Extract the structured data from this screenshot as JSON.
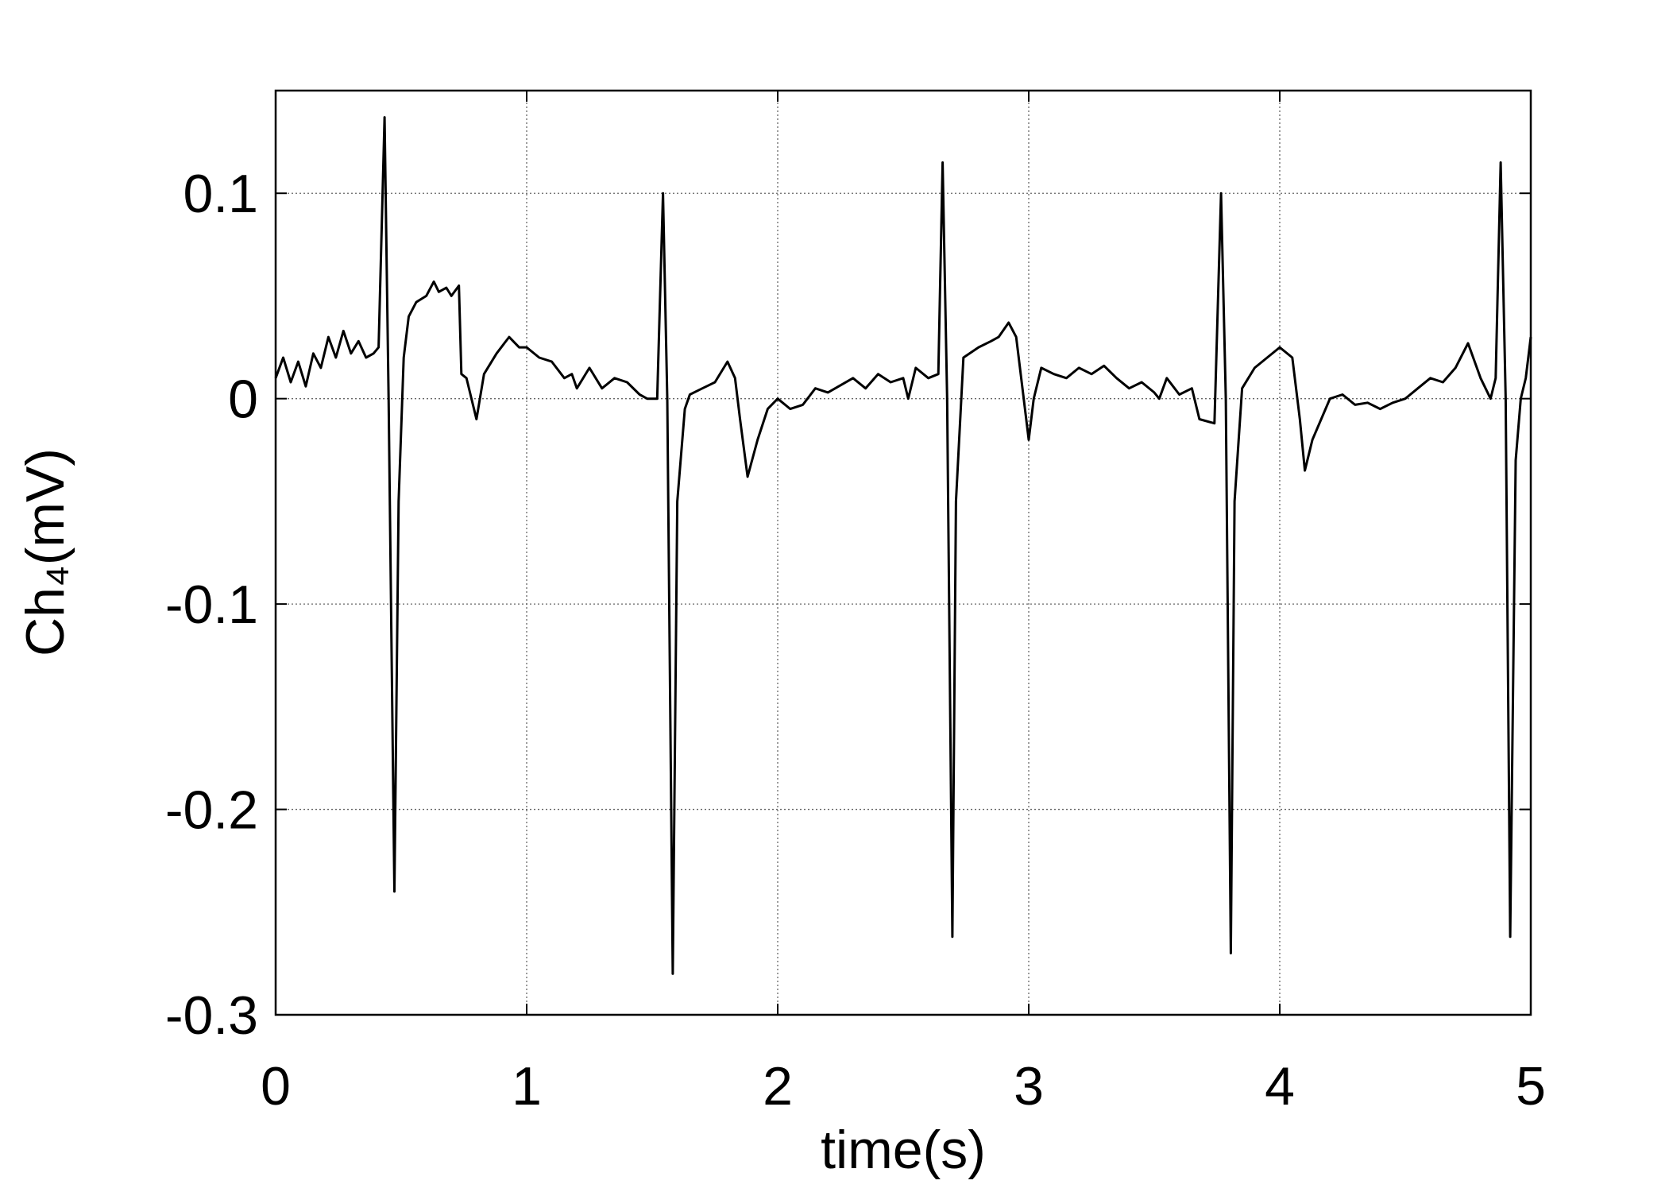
{
  "chart_data": {
    "type": "line",
    "xlabel": "time(s)",
    "ylabel": "Ch₄(mV)",
    "color": "#000000",
    "grid": true,
    "xlim": [
      0,
      5
    ],
    "ylim": [
      -0.3,
      0.15
    ],
    "xticks": [
      0,
      1,
      2,
      3,
      4,
      5
    ],
    "yticks": [
      -0.3,
      -0.2,
      -0.1,
      0,
      0.1
    ],
    "x": [
      0,
      0.03,
      0.06,
      0.09,
      0.12,
      0.15,
      0.18,
      0.21,
      0.24,
      0.27,
      0.3,
      0.33,
      0.36,
      0.39,
      0.41,
      0.434,
      0.45,
      0.473,
      0.49,
      0.51,
      0.53,
      0.56,
      0.6,
      0.63,
      0.65,
      0.68,
      0.7,
      0.73,
      0.74,
      0.76,
      0.78,
      0.8,
      0.83,
      0.88,
      0.93,
      0.97,
      1.0,
      1.05,
      1.1,
      1.15,
      1.18,
      1.2,
      1.25,
      1.3,
      1.35,
      1.4,
      1.45,
      1.48,
      1.52,
      1.543,
      1.56,
      1.582,
      1.6,
      1.63,
      1.65,
      1.7,
      1.75,
      1.8,
      1.83,
      1.85,
      1.88,
      1.92,
      1.96,
      2.0,
      2.05,
      2.1,
      2.15,
      2.2,
      2.3,
      2.35,
      2.4,
      2.45,
      2.5,
      2.52,
      2.55,
      2.6,
      2.64,
      2.657,
      2.675,
      2.696,
      2.71,
      2.74,
      2.8,
      2.85,
      2.88,
      2.92,
      2.95,
      2.98,
      3.0,
      3.02,
      3.05,
      3.1,
      3.15,
      3.2,
      3.25,
      3.3,
      3.35,
      3.4,
      3.45,
      3.5,
      3.52,
      3.55,
      3.6,
      3.65,
      3.68,
      3.74,
      3.766,
      3.785,
      3.805,
      3.82,
      3.85,
      3.9,
      3.95,
      4.0,
      4.05,
      4.08,
      4.1,
      4.13,
      4.2,
      4.25,
      4.3,
      4.35,
      4.4,
      4.45,
      4.5,
      4.55,
      4.6,
      4.65,
      4.7,
      4.75,
      4.8,
      4.84,
      4.86,
      4.88,
      4.9,
      4.918,
      4.94,
      4.96,
      4.98,
      5
    ],
    "values": [
      0.01,
      0.02,
      0.008,
      0.018,
      0.006,
      0.022,
      0.015,
      0.03,
      0.02,
      0.033,
      0.022,
      0.028,
      0.02,
      0.022,
      0.025,
      0.137,
      0.0,
      -0.24,
      -0.05,
      0.02,
      0.04,
      0.047,
      0.05,
      0.057,
      0.052,
      0.054,
      0.05,
      0.055,
      0.012,
      0.01,
      0.0,
      -0.01,
      0.012,
      0.022,
      0.03,
      0.025,
      0.025,
      0.02,
      0.018,
      0.01,
      0.012,
      0.005,
      0.015,
      0.005,
      0.01,
      0.008,
      0.002,
      0.0,
      0.0,
      0.1,
      0.0,
      -0.28,
      -0.05,
      -0.005,
      0.002,
      0.005,
      0.008,
      0.018,
      0.01,
      -0.01,
      -0.038,
      -0.02,
      -0.005,
      0.0,
      -0.005,
      -0.003,
      0.005,
      0.003,
      0.01,
      0.005,
      0.012,
      0.008,
      0.01,
      0.0,
      0.015,
      0.01,
      0.012,
      0.115,
      0.0,
      -0.262,
      -0.05,
      0.02,
      0.025,
      0.028,
      0.03,
      0.037,
      0.03,
      0.0,
      -0.02,
      0.0,
      0.015,
      0.012,
      0.01,
      0.015,
      0.012,
      0.016,
      0.01,
      0.005,
      0.008,
      0.003,
      0.0,
      0.01,
      0.002,
      0.005,
      -0.01,
      -0.012,
      0.1,
      0.0,
      -0.27,
      -0.05,
      0.005,
      0.015,
      0.02,
      0.025,
      0.02,
      -0.01,
      -0.035,
      -0.02,
      0.0,
      0.002,
      -0.003,
      -0.002,
      -0.005,
      -0.002,
      0.0,
      0.005,
      0.01,
      0.008,
      0.015,
      0.027,
      0.01,
      0.0,
      0.01,
      0.115,
      0.0,
      -0.262,
      -0.03,
      0.0,
      0.01,
      0.03
    ]
  }
}
